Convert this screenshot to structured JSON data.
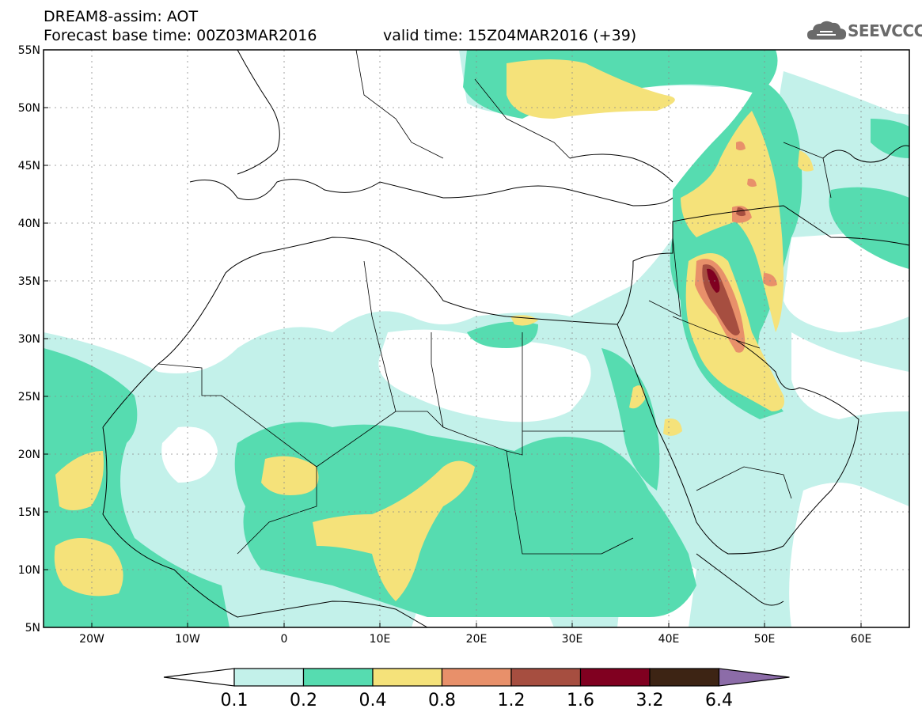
{
  "header": {
    "title_line1": "DREAM8-assim: AOT",
    "title_line2": "Forecast base time: 00Z03MAR2016",
    "valid_time": "valid time: 15Z04MAR2016 (+39)",
    "logo_text": "SEEVCCC"
  },
  "map": {
    "lat_labels": [
      "55N",
      "50N",
      "45N",
      "40N",
      "35N",
      "30N",
      "25N",
      "20N",
      "15N",
      "10N",
      "5N"
    ],
    "lon_labels": [
      "20W",
      "10W",
      "0",
      "10E",
      "20E",
      "30E",
      "40E",
      "50E",
      "60E"
    ],
    "lon_range": [
      -25,
      65
    ],
    "lat_range": [
      5,
      55
    ]
  },
  "colorbar": {
    "labels": [
      "0.1",
      "0.2",
      "0.4",
      "0.8",
      "1.2",
      "1.6",
      "3.2",
      "6.4"
    ],
    "colors": [
      "#ffffff",
      "#c3f1ea",
      "#56dcb0",
      "#f5e27a",
      "#e8906a",
      "#a64e40",
      "#800020",
      "#3d2414",
      "#8c6ca8"
    ]
  },
  "colors": {
    "level1": "#c3f1ea",
    "level2": "#56dcb0",
    "level3": "#f5e27a",
    "level4": "#e8906a",
    "level5": "#a64e40",
    "level6": "#800020"
  }
}
